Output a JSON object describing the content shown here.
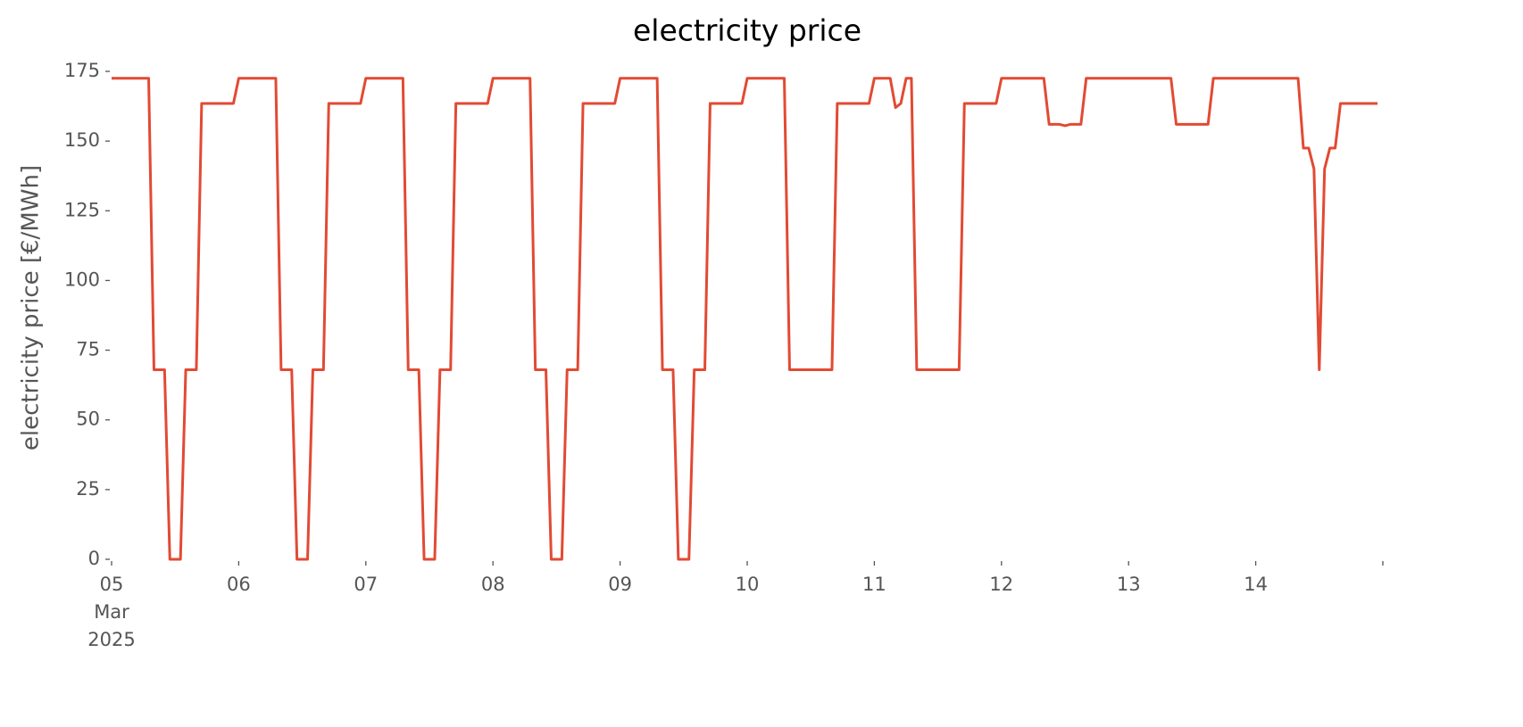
{
  "chart_data": {
    "type": "line",
    "title": "electricity price",
    "ylabel": "electricity price [€/MWh]",
    "color": "#e24a33",
    "grid": false,
    "ylim": [
      0,
      175
    ],
    "yticks": [
      0,
      25,
      50,
      75,
      100,
      125,
      150,
      175
    ],
    "xlim": [
      "2025-03-05T00:00",
      "2025-03-15T00:00"
    ],
    "xticks": [
      {
        "value": "2025-03-05T00:00",
        "label": "05\nMar\n2025"
      },
      {
        "value": "2025-03-06T00:00",
        "label": "06"
      },
      {
        "value": "2025-03-07T00:00",
        "label": "07"
      },
      {
        "value": "2025-03-08T00:00",
        "label": "08"
      },
      {
        "value": "2025-03-09T00:00",
        "label": "09"
      },
      {
        "value": "2025-03-10T00:00",
        "label": "10"
      },
      {
        "value": "2025-03-11T00:00",
        "label": "11"
      },
      {
        "value": "2025-03-12T00:00",
        "label": "12"
      },
      {
        "value": "2025-03-13T00:00",
        "label": "13"
      },
      {
        "value": "2025-03-14T00:00",
        "label": "14"
      },
      {
        "value": "2025-03-15T00:00"
      }
    ],
    "x": [
      "2025-03-05T00:00",
      "2025-03-05T01:00",
      "2025-03-05T02:00",
      "2025-03-05T03:00",
      "2025-03-05T04:00",
      "2025-03-05T05:00",
      "2025-03-05T06:00",
      "2025-03-05T07:00",
      "2025-03-05T08:00",
      "2025-03-05T09:00",
      "2025-03-05T10:00",
      "2025-03-05T11:00",
      "2025-03-05T12:00",
      "2025-03-05T13:00",
      "2025-03-05T14:00",
      "2025-03-05T15:00",
      "2025-03-05T16:00",
      "2025-03-05T17:00",
      "2025-03-05T18:00",
      "2025-03-05T19:00",
      "2025-03-05T20:00",
      "2025-03-05T21:00",
      "2025-03-05T22:00",
      "2025-03-05T23:00",
      "2025-03-06T00:00",
      "2025-03-06T01:00",
      "2025-03-06T02:00",
      "2025-03-06T03:00",
      "2025-03-06T04:00",
      "2025-03-06T05:00",
      "2025-03-06T06:00",
      "2025-03-06T07:00",
      "2025-03-06T08:00",
      "2025-03-06T09:00",
      "2025-03-06T10:00",
      "2025-03-06T11:00",
      "2025-03-06T12:00",
      "2025-03-06T13:00",
      "2025-03-06T14:00",
      "2025-03-06T15:00",
      "2025-03-06T16:00",
      "2025-03-06T17:00",
      "2025-03-06T18:00",
      "2025-03-06T19:00",
      "2025-03-06T20:00",
      "2025-03-06T21:00",
      "2025-03-06T22:00",
      "2025-03-06T23:00",
      "2025-03-07T00:00",
      "2025-03-07T01:00",
      "2025-03-07T02:00",
      "2025-03-07T03:00",
      "2025-03-07T04:00",
      "2025-03-07T05:00",
      "2025-03-07T06:00",
      "2025-03-07T07:00",
      "2025-03-07T08:00",
      "2025-03-07T09:00",
      "2025-03-07T10:00",
      "2025-03-07T11:00",
      "2025-03-07T12:00",
      "2025-03-07T13:00",
      "2025-03-07T14:00",
      "2025-03-07T15:00",
      "2025-03-07T16:00",
      "2025-03-07T17:00",
      "2025-03-07T18:00",
      "2025-03-07T19:00",
      "2025-03-07T20:00",
      "2025-03-07T21:00",
      "2025-03-07T22:00",
      "2025-03-07T23:00",
      "2025-03-08T00:00",
      "2025-03-08T01:00",
      "2025-03-08T02:00",
      "2025-03-08T03:00",
      "2025-03-08T04:00",
      "2025-03-08T05:00",
      "2025-03-08T06:00",
      "2025-03-08T07:00",
      "2025-03-08T08:00",
      "2025-03-08T09:00",
      "2025-03-08T10:00",
      "2025-03-08T11:00",
      "2025-03-08T12:00",
      "2025-03-08T13:00",
      "2025-03-08T14:00",
      "2025-03-08T15:00",
      "2025-03-08T16:00",
      "2025-03-08T17:00",
      "2025-03-08T18:00",
      "2025-03-08T19:00",
      "2025-03-08T20:00",
      "2025-03-08T21:00",
      "2025-03-08T22:00",
      "2025-03-08T23:00",
      "2025-03-09T00:00",
      "2025-03-09T01:00",
      "2025-03-09T02:00",
      "2025-03-09T03:00",
      "2025-03-09T04:00",
      "2025-03-09T05:00",
      "2025-03-09T06:00",
      "2025-03-09T07:00",
      "2025-03-09T08:00",
      "2025-03-09T09:00",
      "2025-03-09T10:00",
      "2025-03-09T11:00",
      "2025-03-09T12:00",
      "2025-03-09T13:00",
      "2025-03-09T14:00",
      "2025-03-09T15:00",
      "2025-03-09T16:00",
      "2025-03-09T17:00",
      "2025-03-09T18:00",
      "2025-03-09T19:00",
      "2025-03-09T20:00",
      "2025-03-09T21:00",
      "2025-03-09T22:00",
      "2025-03-09T23:00",
      "2025-03-10T00:00",
      "2025-03-10T01:00",
      "2025-03-10T02:00",
      "2025-03-10T03:00",
      "2025-03-10T04:00",
      "2025-03-10T05:00",
      "2025-03-10T06:00",
      "2025-03-10T07:00",
      "2025-03-10T08:00",
      "2025-03-10T09:00",
      "2025-03-10T10:00",
      "2025-03-10T11:00",
      "2025-03-10T12:00",
      "2025-03-10T13:00",
      "2025-03-10T14:00",
      "2025-03-10T15:00",
      "2025-03-10T16:00",
      "2025-03-10T17:00",
      "2025-03-10T18:00",
      "2025-03-10T19:00",
      "2025-03-10T20:00",
      "2025-03-10T21:00",
      "2025-03-10T22:00",
      "2025-03-10T23:00",
      "2025-03-11T00:00",
      "2025-03-11T01:00",
      "2025-03-11T02:00",
      "2025-03-11T03:00",
      "2025-03-11T04:00",
      "2025-03-11T05:00",
      "2025-03-11T06:00",
      "2025-03-11T07:00",
      "2025-03-11T08:00",
      "2025-03-11T09:00",
      "2025-03-11T10:00",
      "2025-03-11T11:00",
      "2025-03-11T12:00",
      "2025-03-11T13:00",
      "2025-03-11T14:00",
      "2025-03-11T15:00",
      "2025-03-11T16:00",
      "2025-03-11T17:00",
      "2025-03-11T18:00",
      "2025-03-11T19:00",
      "2025-03-11T20:00",
      "2025-03-11T21:00",
      "2025-03-11T22:00",
      "2025-03-11T23:00",
      "2025-03-12T00:00",
      "2025-03-12T01:00",
      "2025-03-12T02:00",
      "2025-03-12T03:00",
      "2025-03-12T04:00",
      "2025-03-12T05:00",
      "2025-03-12T06:00",
      "2025-03-12T07:00",
      "2025-03-12T08:00",
      "2025-03-12T09:00",
      "2025-03-12T10:00",
      "2025-03-12T11:00",
      "2025-03-12T12:00",
      "2025-03-12T13:00",
      "2025-03-12T14:00",
      "2025-03-12T15:00",
      "2025-03-12T16:00",
      "2025-03-12T17:00",
      "2025-03-12T18:00",
      "2025-03-12T19:00",
      "2025-03-12T20:00",
      "2025-03-12T21:00",
      "2025-03-12T22:00",
      "2025-03-12T23:00",
      "2025-03-13T00:00",
      "2025-03-13T01:00",
      "2025-03-13T02:00",
      "2025-03-13T03:00",
      "2025-03-13T04:00",
      "2025-03-13T05:00",
      "2025-03-13T06:00",
      "2025-03-13T07:00",
      "2025-03-13T08:00",
      "2025-03-13T09:00",
      "2025-03-13T10:00",
      "2025-03-13T11:00",
      "2025-03-13T12:00",
      "2025-03-13T13:00",
      "2025-03-13T14:00",
      "2025-03-13T15:00",
      "2025-03-13T16:00",
      "2025-03-13T17:00",
      "2025-03-13T18:00",
      "2025-03-13T19:00",
      "2025-03-13T20:00",
      "2025-03-13T21:00",
      "2025-03-13T22:00",
      "2025-03-13T23:00",
      "2025-03-14T00:00",
      "2025-03-14T01:00",
      "2025-03-14T02:00",
      "2025-03-14T03:00",
      "2025-03-14T04:00",
      "2025-03-14T05:00",
      "2025-03-14T06:00",
      "2025-03-14T07:00",
      "2025-03-14T08:00",
      "2025-03-14T09:00",
      "2025-03-14T10:00",
      "2025-03-14T11:00",
      "2025-03-14T12:00",
      "2025-03-14T13:00",
      "2025-03-14T14:00",
      "2025-03-14T15:00",
      "2025-03-14T16:00",
      "2025-03-14T17:00",
      "2025-03-14T18:00",
      "2025-03-14T19:00",
      "2025-03-14T20:00",
      "2025-03-14T21:00",
      "2025-03-14T22:00",
      "2025-03-14T23:00"
    ],
    "values": [
      172.5,
      172.5,
      172.5,
      172.5,
      172.5,
      172.5,
      172.5,
      172.5,
      68,
      68,
      68,
      0,
      0,
      0,
      68,
      68,
      68,
      163.5,
      163.5,
      163.5,
      163.5,
      163.5,
      163.5,
      163.5,
      172.5,
      172.5,
      172.5,
      172.5,
      172.5,
      172.5,
      172.5,
      172.5,
      68,
      68,
      68,
      0,
      0,
      0,
      68,
      68,
      68,
      163.5,
      163.5,
      163.5,
      163.5,
      163.5,
      163.5,
      163.5,
      172.5,
      172.5,
      172.5,
      172.5,
      172.5,
      172.5,
      172.5,
      172.5,
      68,
      68,
      68,
      0,
      0,
      0,
      68,
      68,
      68,
      163.5,
      163.5,
      163.5,
      163.5,
      163.5,
      163.5,
      163.5,
      172.5,
      172.5,
      172.5,
      172.5,
      172.5,
      172.5,
      172.5,
      172.5,
      68,
      68,
      68,
      0,
      0,
      0,
      68,
      68,
      68,
      163.5,
      163.5,
      163.5,
      163.5,
      163.5,
      163.5,
      163.5,
      172.5,
      172.5,
      172.5,
      172.5,
      172.5,
      172.5,
      172.5,
      172.5,
      68,
      68,
      68,
      0,
      0,
      0,
      68,
      68,
      68,
      163.5,
      163.5,
      163.5,
      163.5,
      163.5,
      163.5,
      163.5,
      172.5,
      172.5,
      172.5,
      172.5,
      172.5,
      172.5,
      172.5,
      172.5,
      68,
      68,
      68,
      68,
      68,
      68,
      68,
      68,
      68,
      163.5,
      163.5,
      163.5,
      163.5,
      163.5,
      163.5,
      163.5,
      172.5,
      172.5,
      172.5,
      172.5,
      162,
      163.5,
      172.5,
      172.5,
      68,
      68,
      68,
      68,
      68,
      68,
      68,
      68,
      68,
      163.5,
      163.5,
      163.5,
      163.5,
      163.5,
      163.5,
      163.5,
      172.5,
      172.5,
      172.5,
      172.5,
      172.5,
      172.5,
      172.5,
      172.5,
      172.5,
      156,
      156,
      156,
      155.5,
      156,
      156,
      156,
      172.5,
      172.5,
      172.5,
      172.5,
      172.5,
      172.5,
      172.5,
      172.5,
      172.5,
      172.5,
      172.5,
      172.5,
      172.5,
      172.5,
      172.5,
      172.5,
      172.5,
      156,
      156,
      156,
      156,
      156,
      156,
      156,
      172.5,
      172.5,
      172.5,
      172.5,
      172.5,
      172.5,
      172.5,
      172.5,
      172.5,
      172.5,
      172.5,
      172.5,
      172.5,
      172.5,
      172.5,
      172.5,
      172.5,
      147.5,
      147.5,
      140,
      68,
      140,
      147.5,
      147.5,
      163.5,
      163.5,
      163.5,
      163.5,
      163.5,
      163.5,
      163.5,
      163.5
    ]
  }
}
